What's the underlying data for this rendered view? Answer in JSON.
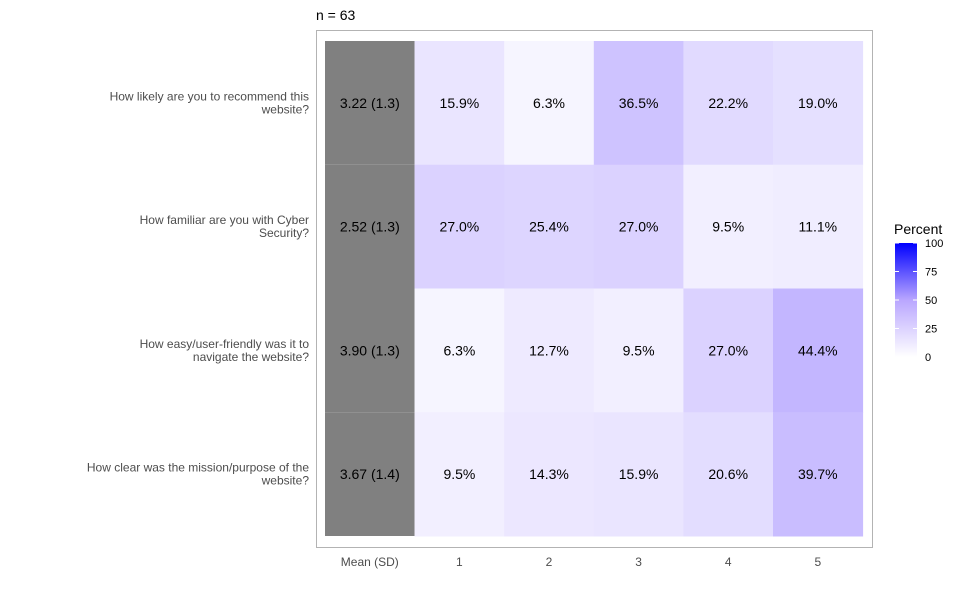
{
  "chart_data": {
    "type": "heatmap",
    "n_label": "n =  63",
    "rows": [
      "How likely are you to recommend this website?",
      "How familiar are you with Cyber Security?",
      "How easy/user-friendly was it to navigate the website?",
      "How clear was the mission/purpose of the website?"
    ],
    "columns": [
      "Mean (SD)",
      "1",
      "2",
      "3",
      "4",
      "5"
    ],
    "mean_sd": [
      "3.22 (1.3)",
      "2.52 (1.3)",
      "3.90 (1.3)",
      "3.67 (1.4)"
    ],
    "percent_values": [
      [
        15.9,
        6.3,
        36.5,
        22.2,
        19.0
      ],
      [
        27.0,
        25.4,
        27.0,
        9.5,
        11.1
      ],
      [
        6.3,
        12.7,
        9.5,
        27.0,
        44.4
      ],
      [
        9.5,
        14.3,
        15.9,
        20.6,
        39.7
      ]
    ],
    "percent_labels": [
      [
        "15.9%",
        "6.3%",
        "36.5%",
        "22.2%",
        "19.0%"
      ],
      [
        "27.0%",
        "25.4%",
        "27.0%",
        "9.5%",
        "11.1%"
      ],
      [
        "6.3%",
        "12.7%",
        "9.5%",
        "27.0%",
        "44.4%"
      ],
      [
        "9.5%",
        "14.3%",
        "15.9%",
        "20.6%",
        "39.7%"
      ]
    ],
    "legend": {
      "title": "Percent",
      "ticks": [
        100,
        75,
        50,
        25,
        0
      ],
      "range": [
        0,
        100
      ],
      "low_color": "#ffffff",
      "high_color": "#0000ff",
      "position": "right"
    },
    "mean_column_color": "#808080",
    "panel_border_color": "#b3b3b3"
  }
}
